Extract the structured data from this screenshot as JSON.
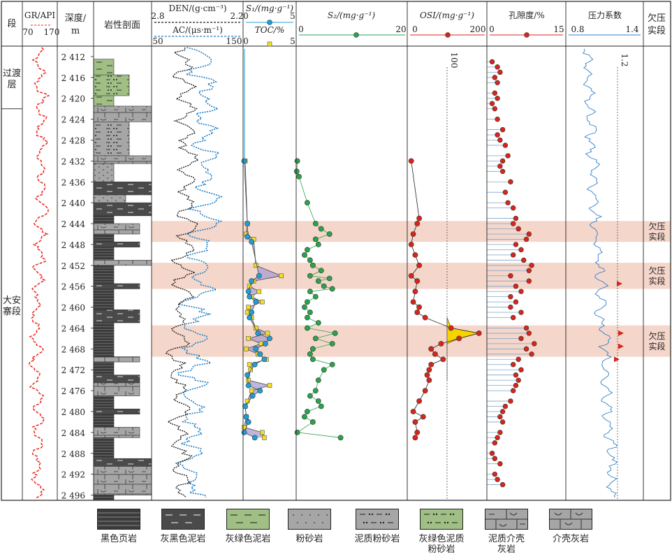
{
  "columns": {
    "segment": "段",
    "gr": "GR/API",
    "gr_min": "70",
    "gr_max": "170",
    "depth_line1": "深度/",
    "depth_line2": "m",
    "lithology": "岩性剖面",
    "den": "DEN/(g·cm⁻³)",
    "den_min": "2.8",
    "den_max": "2.2",
    "ac": "AC/(μs·m⁻¹)",
    "ac_min": "50",
    "ac_max": "150",
    "s1": "S₁/(mg·g⁻¹)",
    "s1_min": "0",
    "s1_max": "5",
    "toc": "TOC/%",
    "toc_min": "0",
    "toc_max": "5",
    "s2": "S₂/(mg·g⁻¹)",
    "s2_min": "0",
    "s2_max": "20",
    "osi": "OSI/(mg·g⁻¹)",
    "osi_min": "0",
    "osi_max": "200",
    "osi_ref": "100",
    "porosity": "孔隙度/%",
    "por_min": "0",
    "por_max": "15",
    "pressure": "压力系数",
    "pc_min": "0.8",
    "pc_max": "1.4",
    "pc_ref": "1.2",
    "undercompaction_line1": "欠压",
    "undercompaction_line2": "实段"
  },
  "segments": [
    {
      "name_line1": "过渡",
      "name_line2": "层",
      "top": 2410,
      "bottom": 2422
    },
    {
      "name_line1": "大安",
      "name_line2": "寨段",
      "top": 2422,
      "bottom": 2497
    }
  ],
  "depth_ticks": [
    "2 412",
    "2 416",
    "2 420",
    "2 424",
    "2 428",
    "2 432",
    "2 436",
    "2 440",
    "2 444",
    "2 448",
    "2 452",
    "2 456",
    "2 460",
    "2 464",
    "2 468",
    "2 472",
    "2 476",
    "2 480",
    "2 484",
    "2 488",
    "2 492",
    "2 496"
  ],
  "legend": [
    {
      "label_line1": "黑色页岩",
      "label_line2": "",
      "pattern": "shale"
    },
    {
      "label_line1": "灰黑色泥岩",
      "label_line2": "",
      "pattern": "mudstone"
    },
    {
      "label_line1": "灰绿色泥岩",
      "label_line2": "",
      "pattern": "green-mudstone"
    },
    {
      "label_line1": "粉砂岩",
      "label_line2": "",
      "pattern": "siltstone"
    },
    {
      "label_line1": "泥质粉砂岩",
      "label_line2": "",
      "pattern": "muddy-siltstone"
    },
    {
      "label_line1": "灰绿色泥质",
      "label_line2": "粉砂岩",
      "pattern": "green-muddy-siltstone"
    },
    {
      "label_line1": "泥质介壳",
      "label_line2": "灰岩",
      "pattern": "muddy-shell-limestone"
    },
    {
      "label_line1": "介壳灰岩",
      "label_line2": "",
      "pattern": "shell-limestone"
    }
  ],
  "colors": {
    "gr": "#e8261c",
    "den": "#1a1a1a",
    "ac": "#1f7fc4",
    "s1": "#1f9fd6",
    "toc": "#f2e020",
    "s2": "#2aa34a",
    "osi": "#d8251b",
    "por": "#d8251b",
    "pressure": "#2f7ec9",
    "band": "#f3cfc1",
    "osi_fill": "#f5d400",
    "s1_fill": "#a99ed1",
    "legend_gray": "#a6a6a6",
    "legend_dark": "#3c3c3c",
    "legend_green": "#9fbf85"
  },
  "chart_data": {
    "type": "line",
    "y_axis": "depth (m)",
    "ylim": [
      2410,
      2497
    ],
    "undercompaction_bands": [
      [
        2443.5,
        2447.5
      ],
      [
        2451.5,
        2456.5
      ],
      [
        2463.5,
        2469.5
      ]
    ],
    "s1": {
      "name": "S₁/(mg·g⁻¹)",
      "xlim": [
        0,
        5
      ],
      "points": [
        [
          0.1,
          2432
        ],
        [
          0.4,
          2444
        ],
        [
          0.4,
          2446.5
        ],
        [
          0.8,
          2447.5
        ],
        [
          1.5,
          2454
        ],
        [
          0.8,
          2455
        ],
        [
          0.5,
          2457
        ],
        [
          0.6,
          2458
        ],
        [
          1.2,
          2459
        ],
        [
          0.8,
          2461
        ],
        [
          0.6,
          2462
        ],
        [
          1.4,
          2465
        ],
        [
          2.5,
          2466
        ],
        [
          2.1,
          2467
        ],
        [
          1.2,
          2468
        ],
        [
          1.6,
          2469
        ],
        [
          2.0,
          2470
        ],
        [
          1.1,
          2471
        ],
        [
          0.4,
          2473
        ],
        [
          0.5,
          2475
        ],
        [
          1.6,
          2476
        ],
        [
          0.9,
          2477
        ],
        [
          0.2,
          2479
        ],
        [
          0.3,
          2481
        ],
        [
          0.5,
          2482
        ],
        [
          0.1,
          2484
        ],
        [
          1.1,
          2485
        ]
      ]
    },
    "toc": {
      "name": "TOC/%",
      "xlim": [
        0,
        5
      ],
      "points": [
        [
          0.2,
          2432
        ],
        [
          0.4,
          2444
        ],
        [
          0.3,
          2446
        ],
        [
          1.0,
          2447
        ],
        [
          1.2,
          2452
        ],
        [
          3.6,
          2454
        ],
        [
          1.0,
          2455
        ],
        [
          0.6,
          2456
        ],
        [
          1.5,
          2457
        ],
        [
          0.8,
          2458
        ],
        [
          1.8,
          2459
        ],
        [
          0.5,
          2460
        ],
        [
          0.4,
          2461
        ],
        [
          0.8,
          2462
        ],
        [
          1.2,
          2464
        ],
        [
          2.3,
          2465
        ],
        [
          0.5,
          2466
        ],
        [
          1.7,
          2467
        ],
        [
          0.3,
          2468
        ],
        [
          1.4,
          2469
        ],
        [
          2.2,
          2470
        ],
        [
          0.6,
          2471
        ],
        [
          0.7,
          2472
        ],
        [
          0.5,
          2474
        ],
        [
          2.5,
          2475
        ],
        [
          0.8,
          2476
        ],
        [
          0.4,
          2478
        ],
        [
          0.2,
          2479
        ],
        [
          0.3,
          2481
        ],
        [
          0.1,
          2483
        ],
        [
          1.8,
          2484
        ],
        [
          2.0,
          2485
        ]
      ]
    },
    "s2": {
      "name": "S₂/(mg·g⁻¹)",
      "xlim": [
        0,
        20
      ],
      "points": [
        [
          0.2,
          2432
        ],
        [
          0.1,
          2434
        ],
        [
          0.5,
          2435
        ],
        [
          2.0,
          2440
        ],
        [
          3.5,
          2444
        ],
        [
          4.5,
          2445
        ],
        [
          6.0,
          2446
        ],
        [
          3.5,
          2447
        ],
        [
          4.0,
          2448
        ],
        [
          2.0,
          2449
        ],
        [
          1.5,
          2450
        ],
        [
          2.5,
          2451
        ],
        [
          3.0,
          2452
        ],
        [
          4.5,
          2453
        ],
        [
          2.5,
          2454
        ],
        [
          6.0,
          2454.5
        ],
        [
          4.0,
          2455
        ],
        [
          5.0,
          2456
        ],
        [
          6.5,
          2456.5
        ],
        [
          2.5,
          2457
        ],
        [
          3.5,
          2458
        ],
        [
          2.0,
          2459
        ],
        [
          1.5,
          2460
        ],
        [
          2.5,
          2461
        ],
        [
          2.0,
          2462
        ],
        [
          4.0,
          2463
        ],
        [
          2.0,
          2464
        ],
        [
          7.0,
          2465
        ],
        [
          3.5,
          2466
        ],
        [
          6.5,
          2467
        ],
        [
          3.0,
          2468
        ],
        [
          2.5,
          2469
        ],
        [
          3.0,
          2470
        ],
        [
          6.5,
          2471
        ],
        [
          5.0,
          2472
        ],
        [
          4.0,
          2474
        ],
        [
          3.5,
          2476
        ],
        [
          2.5,
          2477
        ],
        [
          4.0,
          2478
        ],
        [
          4.5,
          2479
        ],
        [
          2.0,
          2480
        ],
        [
          1.5,
          2481
        ],
        [
          3.0,
          2482
        ],
        [
          0.2,
          2484
        ],
        [
          8.0,
          2485
        ]
      ]
    },
    "osi": {
      "name": "OSI/(mg·g⁻¹)",
      "xlim": [
        0,
        200
      ],
      "points": [
        [
          10,
          2432
        ],
        [
          30,
          2443
        ],
        [
          25,
          2444
        ],
        [
          15,
          2446
        ],
        [
          10,
          2448
        ],
        [
          20,
          2450
        ],
        [
          30,
          2452
        ],
        [
          10,
          2454
        ],
        [
          25,
          2455
        ],
        [
          20,
          2457
        ],
        [
          15,
          2459
        ],
        [
          30,
          2460
        ],
        [
          25,
          2461
        ],
        [
          45,
          2462
        ],
        [
          110,
          2464
        ],
        [
          180,
          2465
        ],
        [
          130,
          2466
        ],
        [
          85,
          2467
        ],
        [
          60,
          2468
        ],
        [
          70,
          2469
        ],
        [
          90,
          2470
        ],
        [
          60,
          2471
        ],
        [
          55,
          2472
        ],
        [
          50,
          2473
        ],
        [
          55,
          2474
        ],
        [
          45,
          2476
        ],
        [
          30,
          2478
        ],
        [
          15,
          2480
        ],
        [
          40,
          2481
        ],
        [
          20,
          2482
        ],
        [
          25,
          2484
        ],
        [
          20,
          2485
        ]
      ]
    },
    "porosity": {
      "name": "孔隙度/%",
      "xlim": [
        0,
        15
      ],
      "points": [
        [
          1.0,
          2413
        ],
        [
          2.0,
          2414
        ],
        [
          2.5,
          2415
        ],
        [
          1.5,
          2416
        ],
        [
          2.0,
          2417
        ],
        [
          1.5,
          2419
        ],
        [
          2.0,
          2420
        ],
        [
          1.0,
          2421
        ],
        [
          1.5,
          2422
        ],
        [
          2.0,
          2424
        ],
        [
          3.0,
          2426
        ],
        [
          2.0,
          2427
        ],
        [
          2.5,
          2428
        ],
        [
          3.5,
          2429
        ],
        [
          4.0,
          2431
        ],
        [
          3.0,
          2432
        ],
        [
          2.5,
          2433
        ],
        [
          3.0,
          2434
        ],
        [
          4.5,
          2436
        ],
        [
          3.5,
          2438
        ],
        [
          4.0,
          2440
        ],
        [
          5.0,
          2441
        ],
        [
          5.5,
          2443
        ],
        [
          5.0,
          2444
        ],
        [
          6.0,
          2445
        ],
        [
          8.0,
          2446
        ],
        [
          7.5,
          2447
        ],
        [
          5.5,
          2448
        ],
        [
          6.5,
          2449
        ],
        [
          5.0,
          2450
        ],
        [
          7.0,
          2451
        ],
        [
          8.5,
          2452
        ],
        [
          8.0,
          2453
        ],
        [
          4.5,
          2454
        ],
        [
          8.0,
          2455
        ],
        [
          5.5,
          2456
        ],
        [
          6.5,
          2457
        ],
        [
          4.5,
          2458
        ],
        [
          5.5,
          2459
        ],
        [
          4.5,
          2460
        ],
        [
          6.5,
          2461
        ],
        [
          5.0,
          2462
        ],
        [
          7.5,
          2464
        ],
        [
          8.0,
          2465
        ],
        [
          6.5,
          2466
        ],
        [
          9.0,
          2467
        ],
        [
          7.5,
          2468
        ],
        [
          8.5,
          2469
        ],
        [
          6.0,
          2470
        ],
        [
          5.0,
          2471
        ],
        [
          6.5,
          2472
        ],
        [
          5.5,
          2473
        ],
        [
          6.0,
          2474
        ],
        [
          5.5,
          2475
        ],
        [
          5.0,
          2476
        ],
        [
          4.5,
          2478
        ],
        [
          3.5,
          2479
        ],
        [
          3.0,
          2480
        ],
        [
          2.5,
          2481
        ],
        [
          3.0,
          2482
        ],
        [
          2.5,
          2484
        ],
        [
          2.0,
          2485
        ],
        [
          1.5,
          2486
        ],
        [
          1.0,
          2488
        ],
        [
          1.5,
          2489
        ],
        [
          2.5,
          2490
        ],
        [
          1.5,
          2492
        ],
        [
          2.0,
          2493
        ],
        [
          3.0,
          2494
        ]
      ]
    },
    "pressure": {
      "name": "压力系数",
      "xlim": [
        0.8,
        1.4
      ],
      "reference": 1.2
    }
  }
}
